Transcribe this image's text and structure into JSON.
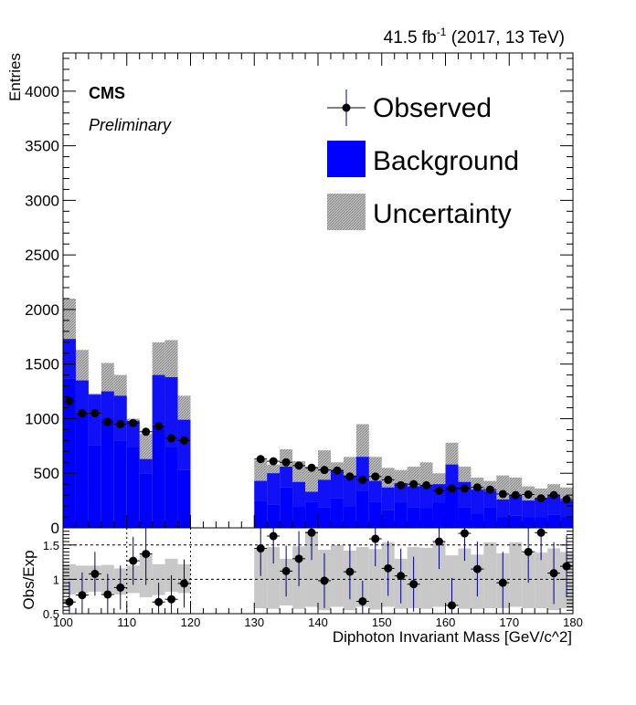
{
  "header": {
    "lumi": "41.5 fb",
    "lumi_exp": "-1",
    "lumi_suffix": " (2017, 13 TeV)",
    "experiment": "CMS",
    "status": "Preliminary"
  },
  "legend": {
    "placement": "top-right",
    "items": [
      {
        "label": "Observed",
        "style": "marker"
      },
      {
        "label": "Background",
        "style": "fill",
        "color": "#0000ff"
      },
      {
        "label": "Uncertainty",
        "style": "hatch",
        "color": "#c8c8c8"
      }
    ]
  },
  "chart_data": [
    {
      "type": "bar",
      "title": "",
      "xlabel": "",
      "ylabel": "Entries",
      "xlim": [
        100,
        180
      ],
      "ylim": [
        0,
        4350
      ],
      "yticks": [
        0,
        500,
        1000,
        1500,
        2000,
        2500,
        3000,
        3500,
        4000
      ],
      "blinded_region": [
        120,
        130
      ],
      "bin_width": 2,
      "bins_low_edge": [
        100,
        102,
        104,
        106,
        108,
        110,
        112,
        114,
        116,
        118,
        130,
        132,
        134,
        136,
        138,
        140,
        142,
        144,
        146,
        148,
        150,
        152,
        154,
        156,
        158,
        160,
        162,
        164,
        166,
        168,
        170,
        172,
        174,
        176,
        178
      ],
      "series": [
        {
          "name": "Background",
          "color": "#0000ff",
          "values": [
            1730,
            1350,
            1220,
            1250,
            1210,
            980,
            630,
            1400,
            1380,
            990,
            430,
            500,
            560,
            420,
            330,
            440,
            530,
            480,
            650,
            430,
            370,
            410,
            380,
            390,
            400,
            580,
            420,
            350,
            340,
            260,
            300,
            250,
            270,
            300,
            250
          ]
        },
        {
          "name": "Uncertainty",
          "color": "#c8c8c8",
          "low": [
            1370,
            1060,
            760,
            1000,
            800,
            740,
            500,
            940,
            740,
            530,
            250,
            210,
            370,
            200,
            240,
            190,
            270,
            200,
            340,
            240,
            160,
            230,
            190,
            180,
            230,
            380,
            190,
            130,
            190,
            100,
            110,
            100,
            100,
            120,
            100
          ],
          "high": [
            2100,
            1630,
            1230,
            1510,
            1400,
            1000,
            860,
            1700,
            1720,
            1210,
            620,
            580,
            720,
            610,
            560,
            710,
            600,
            650,
            950,
            650,
            550,
            530,
            560,
            600,
            500,
            780,
            560,
            460,
            430,
            480,
            460,
            380,
            360,
            400,
            370
          ]
        },
        {
          "name": "Observed",
          "color": "#000000",
          "values": [
            1160,
            1050,
            1050,
            970,
            950,
            960,
            880,
            930,
            820,
            800,
            630,
            610,
            600,
            570,
            550,
            530,
            525,
            470,
            440,
            470,
            440,
            390,
            400,
            390,
            340,
            360,
            360,
            370,
            350,
            310,
            300,
            305,
            270,
            300,
            260
          ]
        }
      ]
    },
    {
      "type": "scatter",
      "title": "",
      "xlabel": "Diphoton Invariant Mass [GeV/c^2]",
      "ylabel": "Obs/Exp",
      "xlim": [
        100,
        180
      ],
      "ylim": [
        0.5,
        1.75
      ],
      "xticks": [
        100,
        110,
        120,
        130,
        140,
        150,
        160,
        170,
        180
      ],
      "yticks": [
        0.5,
        1,
        1.5
      ],
      "reference_lines": [
        1.0,
        1.5
      ],
      "band_low": [
        0.78,
        0.8,
        0.82,
        0.8,
        0.78,
        0.8,
        0.74,
        0.77,
        0.82,
        0.8,
        0.58,
        0.57,
        0.62,
        0.57,
        0.6,
        0.55,
        0.6,
        0.55,
        0.6,
        0.56,
        0.6,
        0.57,
        0.58,
        0.57,
        0.6,
        0.62,
        0.57,
        0.57,
        0.58,
        0.58,
        0.6,
        0.58,
        0.58,
        0.55,
        0.58
      ],
      "band_high": [
        1.22,
        1.2,
        1.2,
        1.21,
        1.16,
        1.2,
        1.37,
        1.22,
        1.3,
        1.22,
        1.44,
        1.47,
        1.3,
        1.48,
        1.7,
        1.43,
        1.5,
        1.42,
        1.47,
        1.44,
        1.54,
        1.3,
        1.47,
        1.46,
        1.54,
        1.35,
        1.45,
        1.36,
        1.54,
        1.38,
        1.54,
        1.38,
        1.39,
        1.45,
        1.4
      ],
      "values": [
        0.67,
        0.77,
        1.08,
        0.78,
        0.88,
        1.27,
        1.37,
        0.67,
        0.71,
        0.94,
        1.45,
        1.63,
        1.12,
        1.3,
        1.68,
        0.98,
        null,
        1.11,
        0.68,
        1.59,
        1.16,
        1.05,
        0.93,
        null,
        1.55,
        0.62,
        1.67,
        1.15,
        null,
        0.95,
        null,
        1.4,
        1.68,
        1.09,
        1.19
      ],
      "errors": [
        0.3,
        0.33,
        0.32,
        0.3,
        0.32,
        0.35,
        0.45,
        0.28,
        0.35,
        0.35,
        0.4,
        0.4,
        0.37,
        0.4,
        0.4,
        0.4,
        null,
        0.4,
        0.3,
        0.4,
        0.4,
        0.4,
        0.4,
        null,
        0.4,
        0.4,
        0.4,
        0.4,
        null,
        0.45,
        null,
        0.45,
        0.4,
        0.45,
        0.45
      ]
    }
  ]
}
